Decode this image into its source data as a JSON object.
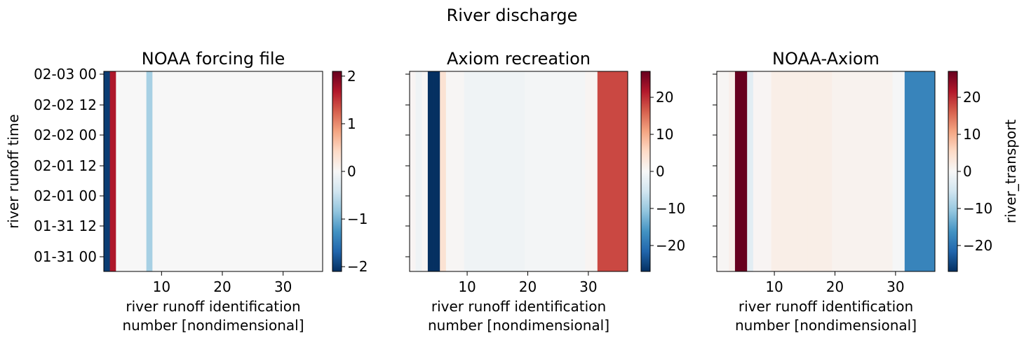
{
  "suptitle": "River discharge",
  "chart_data": [
    {
      "type": "heatmap",
      "title": "NOAA forcing file",
      "xlabel": [
        "river runoff identification",
        "number [nondimensional]"
      ],
      "ylabel": "river runoff time",
      "xlim": [
        0.5,
        36.5
      ],
      "xticks": [
        10,
        20,
        30
      ],
      "yticks": [
        "01-31 00",
        "01-31 12",
        "02-01 00",
        "02-01 12",
        "02-02 00",
        "02-02 12",
        "02-03 00"
      ],
      "colorbar": {
        "vmin": -2.1,
        "vmax": 2.1,
        "ticks": [
          -2,
          -1,
          0,
          1,
          2
        ],
        "label": ""
      },
      "columns": [
        {
          "x": 1,
          "value": -2.0
        },
        {
          "x": 2,
          "value": 1.7
        },
        {
          "x": 3,
          "value": 0
        },
        {
          "x": 4,
          "value": 0
        },
        {
          "x": 5,
          "value": 0
        },
        {
          "x": 6,
          "value": 0
        },
        {
          "x": 7,
          "value": 0
        },
        {
          "x": 8,
          "value": -0.7
        },
        {
          "x": 9,
          "value": 0
        }
      ],
      "default_value": 0
    },
    {
      "type": "heatmap",
      "title": "Axiom recreation",
      "xlabel": [
        "river runoff identification",
        "number [nondimensional]"
      ],
      "ylabel": "",
      "xlim": [
        0.5,
        36.5
      ],
      "xticks": [
        10,
        20,
        30
      ],
      "yticks": [
        "01-31 00",
        "01-31 12",
        "02-01 00",
        "02-01 12",
        "02-02 00",
        "02-02 12",
        "02-03 00"
      ],
      "colorbar": {
        "vmin": -27,
        "vmax": 27,
        "ticks": [
          -20,
          -10,
          0,
          10,
          20
        ],
        "label": ""
      },
      "columns": [
        {
          "x": 1,
          "value": 0.5
        },
        {
          "x": 2,
          "value": -1.2
        },
        {
          "x": 3,
          "value": 0.3
        },
        {
          "x": 4,
          "value": -27
        },
        {
          "x": 5,
          "value": -27
        },
        {
          "x": 6,
          "value": 4
        },
        {
          "x": 7,
          "value": 0.3
        },
        {
          "x": 8,
          "value": 0.3
        },
        {
          "x": 9,
          "value": 0.3
        },
        {
          "x": 10,
          "value": -1.2
        },
        {
          "x": 11,
          "value": -1.2
        },
        {
          "x": 12,
          "value": -1.2
        },
        {
          "x": 13,
          "value": -1.2
        },
        {
          "x": 14,
          "value": -1.2
        },
        {
          "x": 15,
          "value": -1.2
        },
        {
          "x": 16,
          "value": -1.2
        },
        {
          "x": 17,
          "value": -1.2
        },
        {
          "x": 18,
          "value": -1.2
        },
        {
          "x": 19,
          "value": -1.2
        },
        {
          "x": 20,
          "value": -0.6
        },
        {
          "x": 21,
          "value": -0.6
        },
        {
          "x": 22,
          "value": -0.6
        },
        {
          "x": 23,
          "value": -0.6
        },
        {
          "x": 24,
          "value": -0.6
        },
        {
          "x": 25,
          "value": -0.6
        },
        {
          "x": 26,
          "value": -0.6
        },
        {
          "x": 27,
          "value": -0.6
        },
        {
          "x": 28,
          "value": -0.6
        },
        {
          "x": 29,
          "value": -0.6
        },
        {
          "x": 30,
          "value": 0.6
        },
        {
          "x": 31,
          "value": 0.6
        },
        {
          "x": 32,
          "value": 18
        },
        {
          "x": 33,
          "value": 18
        },
        {
          "x": 34,
          "value": 18
        },
        {
          "x": 35,
          "value": 18
        },
        {
          "x": 36,
          "value": 18
        }
      ],
      "default_value": 0
    },
    {
      "type": "heatmap",
      "title": "NOAA-Axiom",
      "xlabel": [
        "river runoff identification",
        "number [nondimensional]"
      ],
      "ylabel": "",
      "xlim": [
        0.5,
        36.5
      ],
      "xticks": [
        10,
        20,
        30
      ],
      "yticks": [
        "01-31 00",
        "01-31 12",
        "02-01 00",
        "02-01 12",
        "02-02 00",
        "02-02 12",
        "02-03 00"
      ],
      "colorbar": {
        "vmin": -27,
        "vmax": 27,
        "ticks": [
          -20,
          -10,
          0,
          10,
          20
        ],
        "label": "river_transport"
      },
      "columns": [
        {
          "x": 1,
          "value": 0.3
        },
        {
          "x": 2,
          "value": 0.3
        },
        {
          "x": 3,
          "value": 1.5
        },
        {
          "x": 4,
          "value": 27
        },
        {
          "x": 5,
          "value": 27
        },
        {
          "x": 6,
          "value": -3
        },
        {
          "x": 7,
          "value": 0.5
        },
        {
          "x": 8,
          "value": 0.5
        },
        {
          "x": 9,
          "value": 0.5
        },
        {
          "x": 10,
          "value": 1.8
        },
        {
          "x": 11,
          "value": 1.8
        },
        {
          "x": 12,
          "value": 1.8
        },
        {
          "x": 13,
          "value": 1.8
        },
        {
          "x": 14,
          "value": 1.8
        },
        {
          "x": 15,
          "value": 1.8
        },
        {
          "x": 16,
          "value": 1.8
        },
        {
          "x": 17,
          "value": 1.8
        },
        {
          "x": 18,
          "value": 1.8
        },
        {
          "x": 19,
          "value": 1.8
        },
        {
          "x": 20,
          "value": 1.0
        },
        {
          "x": 21,
          "value": 1.0
        },
        {
          "x": 22,
          "value": 1.0
        },
        {
          "x": 23,
          "value": 1.0
        },
        {
          "x": 24,
          "value": 1.0
        },
        {
          "x": 25,
          "value": 1.0
        },
        {
          "x": 26,
          "value": 1.0
        },
        {
          "x": 27,
          "value": 1.0
        },
        {
          "x": 28,
          "value": 1.0
        },
        {
          "x": 29,
          "value": 1.0
        },
        {
          "x": 30,
          "value": -0.3
        },
        {
          "x": 31,
          "value": -0.3
        },
        {
          "x": 32,
          "value": -18
        },
        {
          "x": 33,
          "value": -18
        },
        {
          "x": 34,
          "value": -18
        },
        {
          "x": 35,
          "value": -18
        },
        {
          "x": 36,
          "value": -18
        }
      ],
      "default_value": 0
    }
  ]
}
